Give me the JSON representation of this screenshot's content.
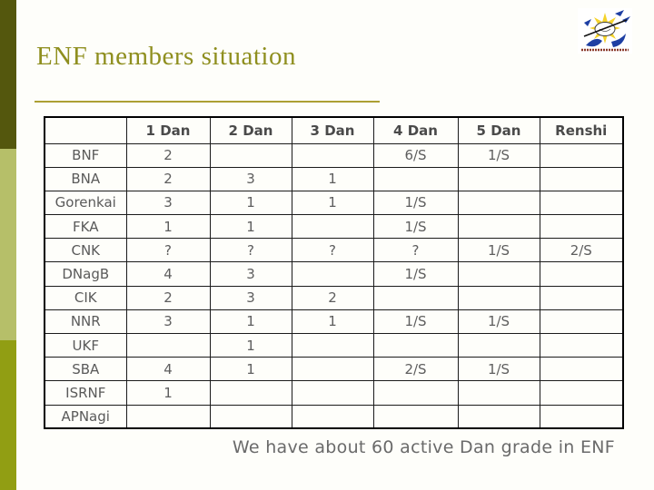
{
  "slide": {
    "title": "ENF members situation",
    "footer_note": "We have about 60 active Dan grade in ENF"
  },
  "logo": {
    "description": "federation-sunburst-logo"
  },
  "table": {
    "columns": [
      "",
      "1 Dan",
      "2 Dan",
      "3 Dan",
      "4 Dan",
      "5 Dan",
      "Renshi"
    ],
    "rows": [
      {
        "name": "BNF",
        "cells": [
          "2",
          "",
          "",
          "6/S",
          "1/S",
          ""
        ]
      },
      {
        "name": "BNA",
        "cells": [
          "2",
          "3",
          "1",
          "",
          "",
          ""
        ]
      },
      {
        "name": "Gorenkai",
        "cells": [
          "3",
          "1",
          "1",
          "1/S",
          "",
          ""
        ]
      },
      {
        "name": "FKA",
        "cells": [
          "1",
          "1",
          "",
          "1/S",
          "",
          ""
        ]
      },
      {
        "name": "CNK",
        "cells": [
          "?",
          "?",
          "?",
          "?",
          "1/S",
          "2/S"
        ]
      },
      {
        "name": "DNagB",
        "cells": [
          "4",
          "3",
          "",
          "1/S",
          "",
          ""
        ]
      },
      {
        "name": "CIK",
        "cells": [
          "2",
          "3",
          "2",
          "",
          "",
          ""
        ]
      },
      {
        "name": "NNR",
        "cells": [
          "3",
          "1",
          "1",
          "1/S",
          "1/S",
          ""
        ]
      },
      {
        "name": "UKF",
        "cells": [
          "",
          "1",
          "",
          "",
          "",
          ""
        ]
      },
      {
        "name": "SBA",
        "cells": [
          "4",
          "1",
          "",
          "2/S",
          "1/S",
          ""
        ]
      },
      {
        "name": "ISRNF",
        "cells": [
          "1",
          "",
          "",
          "",
          "",
          ""
        ]
      },
      {
        "name": "APNagi",
        "cells": [
          "",
          "",
          "",
          "",
          "",
          ""
        ]
      }
    ]
  },
  "colors": {
    "title_text": "#8f8f1f",
    "title_underline": "#ac9f33",
    "sidebar_top": "#54570d",
    "sidebar_middle": "#b6bf69",
    "sidebar_bottom": "#919e13",
    "table_border": "#000000",
    "header_text": "#4a4a4a",
    "body_text": "#5e5e5e",
    "footer_text": "#6a6a6a",
    "logo_sun": "#f5d32b",
    "logo_blue": "#1e3fa3"
  }
}
